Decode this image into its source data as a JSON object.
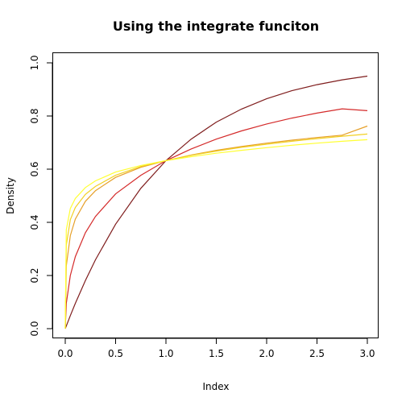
{
  "chart_data": {
    "type": "line",
    "title": "Using the integrate funciton",
    "xlabel": "Index",
    "ylabel": "Density",
    "xlim": [
      0,
      3
    ],
    "ylim": [
      0,
      1
    ],
    "x_ticks": [
      0,
      0.5,
      1,
      1.5,
      2,
      2.5,
      3
    ],
    "x_tick_labels": [
      "0.0",
      "0.5",
      "1.0",
      "1.5",
      "2.0",
      "2.5",
      "3.0"
    ],
    "y_ticks": [
      0,
      0.2,
      0.4,
      0.6,
      0.8,
      1
    ],
    "y_tick_labels": [
      "0.0",
      "0.2",
      "0.4",
      "0.6",
      "0.8",
      "1.0"
    ],
    "grid": false,
    "legend": "none",
    "x": [
      0,
      0.01,
      0.05,
      0.1,
      0.2,
      0.3,
      0.5,
      0.75,
      1,
      1.25,
      1.5,
      1.75,
      2,
      2.25,
      2.5,
      2.75,
      3
    ],
    "series": [
      {
        "color": "#7f1d1d",
        "values": [
          0,
          0.01,
          0.049,
          0.095,
          0.181,
          0.259,
          0.393,
          0.528,
          0.632,
          0.713,
          0.777,
          0.826,
          0.865,
          0.895,
          0.918,
          0.936,
          0.95
        ]
      },
      {
        "color": "#d42a2a",
        "values": [
          0,
          0.095,
          0.2,
          0.271,
          0.361,
          0.422,
          0.507,
          0.577,
          0.632,
          0.676,
          0.713,
          0.744,
          0.77,
          0.792,
          0.811,
          0.827,
          0.82
        ]
      },
      {
        "color": "#e6a029",
        "values": [
          0,
          0.236,
          0.35,
          0.412,
          0.479,
          0.519,
          0.569,
          0.607,
          0.632,
          0.653,
          0.671,
          0.685,
          0.698,
          0.709,
          0.719,
          0.728,
          0.762
        ]
      },
      {
        "color": "#f2d024",
        "values": [
          0,
          0.314,
          0.41,
          0.456,
          0.505,
          0.535,
          0.577,
          0.61,
          0.632,
          0.652,
          0.668,
          0.682,
          0.694,
          0.705,
          0.715,
          0.724,
          0.732
        ]
      },
      {
        "color": "#ffff33",
        "values": [
          0,
          0.372,
          0.452,
          0.49,
          0.531,
          0.556,
          0.589,
          0.614,
          0.632,
          0.647,
          0.66,
          0.671,
          0.681,
          0.69,
          0.698,
          0.705,
          0.711
        ]
      }
    ]
  }
}
